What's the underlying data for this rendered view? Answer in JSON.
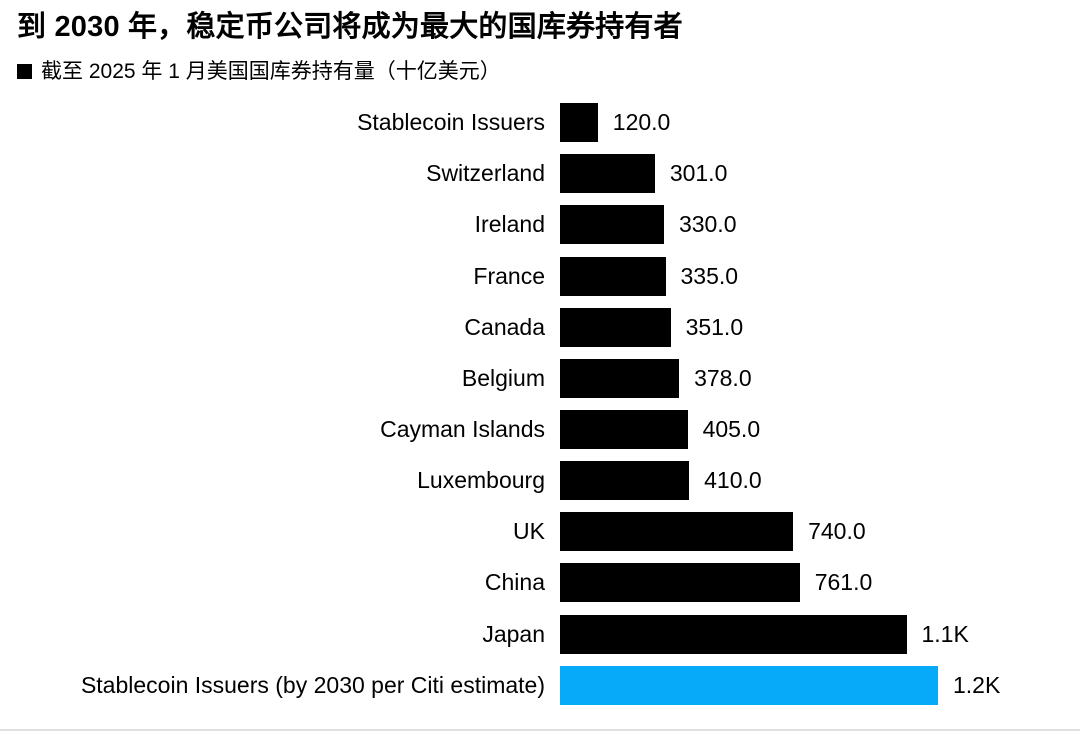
{
  "header": {
    "title": "到 2030 年，稳定币公司将成为最大的国库券持有者",
    "legend_label": "截至 2025 年 1 月美国国库券持有量（十亿美元）",
    "legend_swatch_color": "#000000"
  },
  "colors": {
    "bar_default": "#000000",
    "bar_highlight": "#06AAF8",
    "background": "#ffffff",
    "text": "#000000"
  },
  "chart_data": {
    "type": "bar",
    "orientation": "horizontal",
    "title": "到 2030 年，稳定币公司将成为最大的国库券持有者",
    "legend": "截至 2025 年 1 月美国国库券持有量（十亿美元）",
    "unit": "十亿美元 (billions USD)",
    "xlim": [
      0,
      1200
    ],
    "grid": false,
    "value_labels_position": "right-of-bar",
    "categories": [
      "Stablecoin Issuers",
      "Switzerland",
      "Ireland",
      "France",
      "Canada",
      "Belgium",
      "Cayman Islands",
      "Luxembourg",
      "UK",
      "China",
      "Japan",
      "Stablecoin Issuers (by 2030 per Citi estimate)"
    ],
    "values": [
      120,
      301,
      330,
      335,
      351,
      378,
      405,
      410,
      740,
      761,
      1100,
      1200
    ],
    "bars": [
      {
        "label": "Stablecoin Issuers",
        "value": 120,
        "display": "120.0",
        "color": "#000000"
      },
      {
        "label": "Switzerland",
        "value": 301,
        "display": "301.0",
        "color": "#000000"
      },
      {
        "label": "Ireland",
        "value": 330,
        "display": "330.0",
        "color": "#000000"
      },
      {
        "label": "France",
        "value": 335,
        "display": "335.0",
        "color": "#000000"
      },
      {
        "label": "Canada",
        "value": 351,
        "display": "351.0",
        "color": "#000000"
      },
      {
        "label": "Belgium",
        "value": 378,
        "display": "378.0",
        "color": "#000000"
      },
      {
        "label": "Cayman Islands",
        "value": 405,
        "display": "405.0",
        "color": "#000000"
      },
      {
        "label": "Luxembourg",
        "value": 410,
        "display": "410.0",
        "color": "#000000"
      },
      {
        "label": "UK",
        "value": 740,
        "display": "740.0",
        "color": "#000000"
      },
      {
        "label": "China",
        "value": 761,
        "display": "761.0",
        "color": "#000000"
      },
      {
        "label": "Japan",
        "value": 1100,
        "display": "1.1K",
        "color": "#000000"
      },
      {
        "label": "Stablecoin Issuers (by 2030 per Citi estimate)",
        "value": 1200,
        "display": "1.2K",
        "color": "#06AAF8"
      }
    ]
  }
}
